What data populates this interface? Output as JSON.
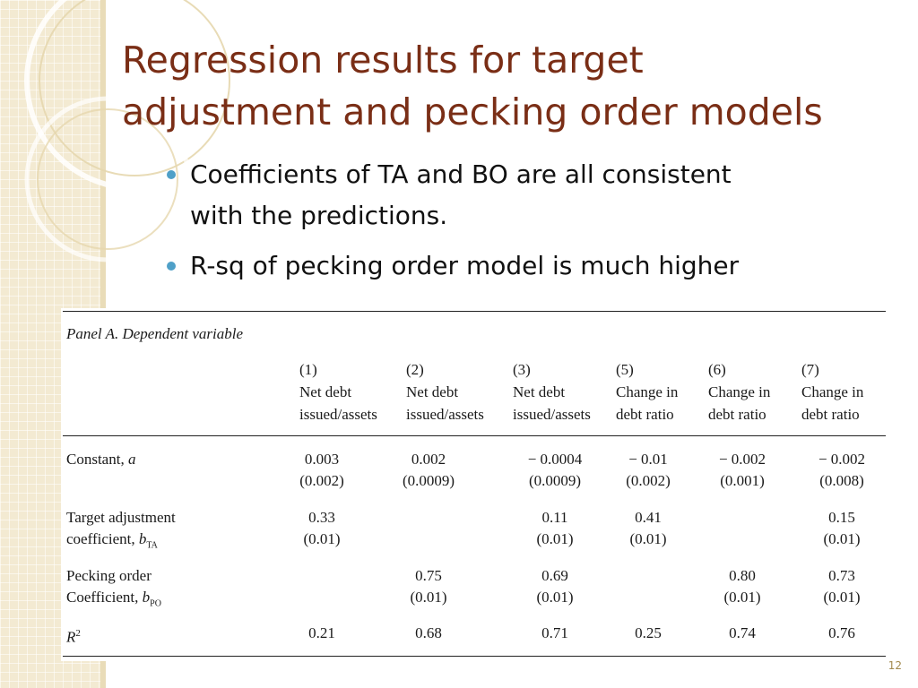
{
  "slide": {
    "title_lines": [
      "Regression results for target",
      "adjustment and pecking order models"
    ],
    "bullets": [
      [
        "Coefficients of TA and BO are all consistent",
        "with the predictions."
      ],
      [
        "R-sq of pecking order model is much higher"
      ]
    ],
    "slide_number": "12"
  },
  "table": {
    "panel_label": "Panel A. Dependent variable",
    "columns": [
      {
        "num": "(1)",
        "line1": "Net debt",
        "line2": "issued/assets"
      },
      {
        "num": "(2)",
        "line1": "Net debt",
        "line2": "issued/assets"
      },
      {
        "num": "(3)",
        "line1": "Net debt",
        "line2": "issued/assets"
      },
      {
        "num": "(5)",
        "line1": "Change in",
        "line2": "debt ratio"
      },
      {
        "num": "(6)",
        "line1": "Change in",
        "line2": "debt ratio"
      },
      {
        "num": "(7)",
        "line1": "Change in",
        "line2": "debt ratio"
      }
    ],
    "rows": [
      {
        "label1": "Constant, ",
        "label1_var": "a",
        "label2": "",
        "coef": [
          "0.003",
          "0.002",
          "− 0.0004",
          "− 0.01",
          "− 0.002",
          "− 0.002"
        ],
        "se": [
          "(0.002)",
          "(0.0009)",
          "(0.0009)",
          "(0.002)",
          "(0.001)",
          "(0.008)"
        ]
      },
      {
        "label1": "Target adjustment",
        "label2": "coefficient, ",
        "label2_var": "b",
        "label2_sub": "TA",
        "coef": [
          "0.33",
          "",
          "0.11",
          "0.41",
          "",
          "0.15"
        ],
        "se": [
          "(0.01)",
          "",
          "(0.01)",
          "(0.01)",
          "",
          "(0.01)"
        ]
      },
      {
        "label1": "Pecking order",
        "label2": "Coefficient, ",
        "label2_var": "b",
        "label2_sub": "PO",
        "coef": [
          "",
          "0.75",
          "0.69",
          "",
          "0.80",
          "0.73"
        ],
        "se": [
          "",
          "(0.01)",
          "(0.01)",
          "",
          "(0.01)",
          "(0.01)"
        ]
      },
      {
        "label1_var": "R",
        "label1_sup": "2",
        "coef": [
          "0.21",
          "0.68",
          "0.71",
          "0.25",
          "0.74",
          "0.76"
        ]
      }
    ]
  }
}
